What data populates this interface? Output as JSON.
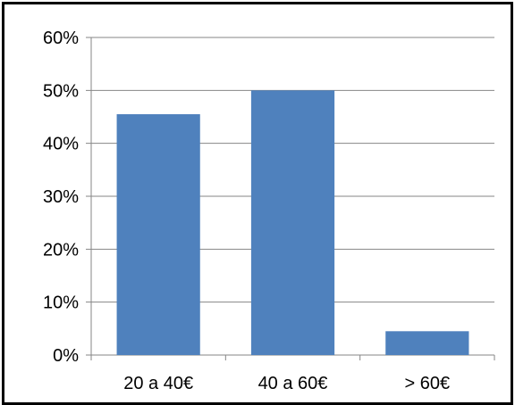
{
  "chart_data": {
    "type": "bar",
    "categories": [
      "20 a 40€",
      "40 a 60€",
      "> 60€"
    ],
    "values": [
      45.5,
      50.0,
      4.5
    ],
    "y_unit": "%",
    "ylim": [
      0,
      60
    ],
    "yticks": [
      "0%",
      "10%",
      "20%",
      "30%",
      "40%",
      "50%",
      "60%"
    ],
    "grid": true,
    "legend": "none",
    "bar_color": "#4F81BD",
    "grid_color": "#868686"
  }
}
